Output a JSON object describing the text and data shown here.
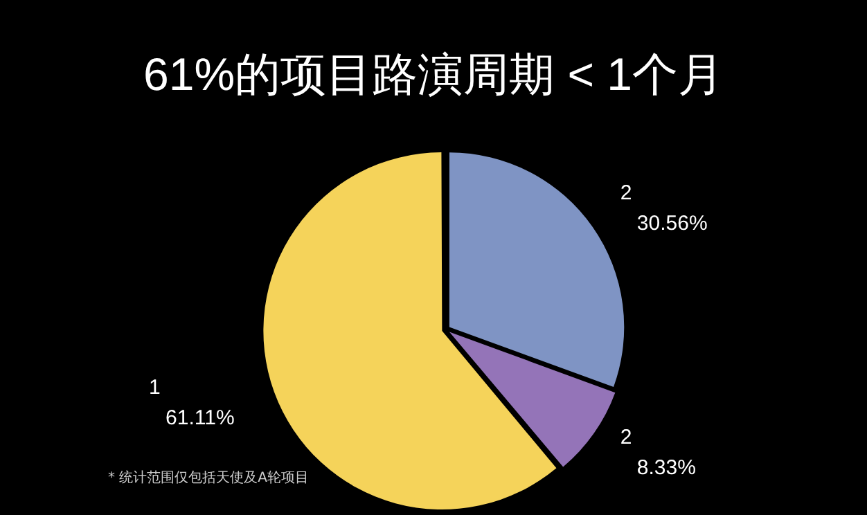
{
  "chart_data": {
    "type": "pie",
    "title": "61%的项目路演周期 < 1个月",
    "categories": [
      "2",
      "2",
      "1"
    ],
    "values": [
      30.56,
      8.33,
      61.11
    ],
    "colors": [
      "#7f94c4",
      "#9474b8",
      "#f5d35a"
    ],
    "value_labels": [
      "30.56%",
      "8.33%",
      "61.11%"
    ],
    "legend": false,
    "annotations": [
      "* 统计范围仅包括天使及A轮项目"
    ]
  }
}
